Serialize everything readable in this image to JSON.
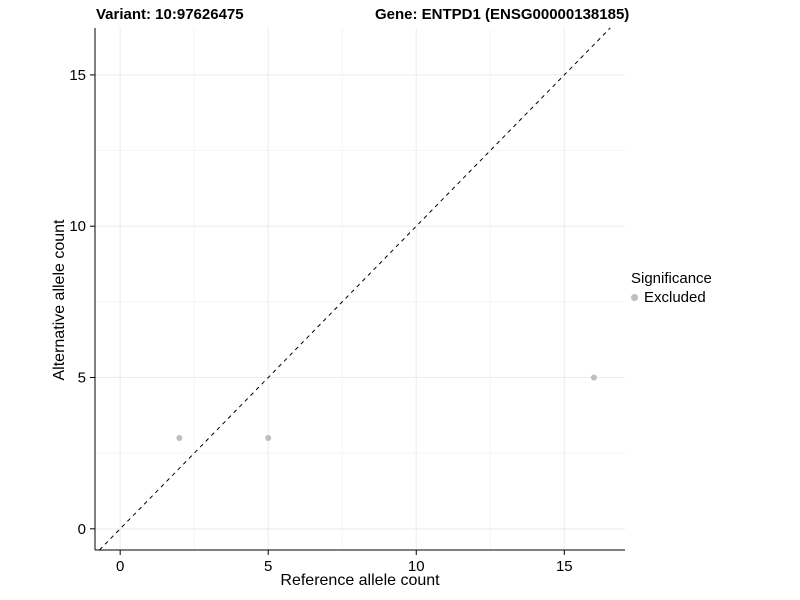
{
  "chart_data": {
    "type": "scatter",
    "title_left": "Variant: 10:97626475",
    "title_right": "Gene: ENTPD1 (ENSG00000138185)",
    "xlabel": "Reference allele count",
    "ylabel": "Alternative allele count",
    "xlim": [
      -0.85,
      17.05
    ],
    "ylim": [
      -0.7,
      16.55
    ],
    "xticks": [
      0,
      5,
      10,
      15
    ],
    "yticks": [
      0,
      5,
      10,
      15
    ],
    "grid": true,
    "identity_line": {
      "style": "dashed",
      "color": "#000000",
      "equation": "y = x"
    },
    "series": [
      {
        "name": "Excluded",
        "color": "#bdbdbd",
        "points": [
          [
            2,
            3
          ],
          [
            5,
            3
          ],
          [
            16,
            5
          ]
        ]
      }
    ],
    "legend": {
      "title": "Significance",
      "position": "right",
      "items": [
        {
          "label": "Excluded",
          "color": "#bdbdbd"
        }
      ]
    },
    "colors": {
      "grid_major": "#ebebeb",
      "grid_minor": "#f5f5f5",
      "axis": "#000000",
      "point": "#bdbdbd"
    }
  }
}
